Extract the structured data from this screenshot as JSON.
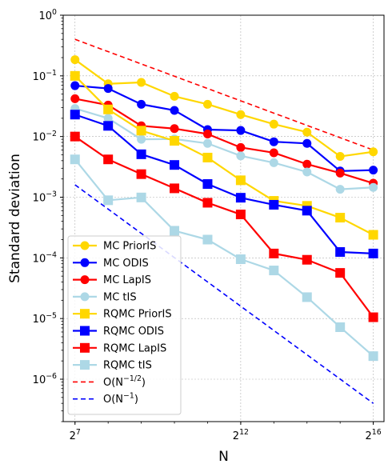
{
  "chart_data": {
    "type": "line",
    "xlabel": "N",
    "ylabel": "Standard deviation",
    "x_scale": "log2",
    "y_scale": "log10",
    "xlim": [
      100,
      82000
    ],
    "ylim": [
      2e-07,
      1
    ],
    "grid": true,
    "legend_position": "lower-left",
    "x_ticks": [
      {
        "value": 128,
        "base": "2",
        "exp": "7"
      },
      {
        "value": 4096,
        "base": "2",
        "exp": "12"
      },
      {
        "value": 65536,
        "base": "2",
        "exp": "16"
      }
    ],
    "y_ticks": [
      {
        "value": 1e-06,
        "base": "10",
        "exp": "−6"
      },
      {
        "value": 1e-05,
        "base": "10",
        "exp": "−5"
      },
      {
        "value": 0.0001,
        "base": "10",
        "exp": "−4"
      },
      {
        "value": 0.001,
        "base": "10",
        "exp": "−3"
      },
      {
        "value": 0.01,
        "base": "10",
        "exp": "−2"
      },
      {
        "value": 0.1,
        "base": "10",
        "exp": "−1"
      },
      {
        "value": 1,
        "base": "10",
        "exp": "0"
      }
    ],
    "x": [
      128,
      256,
      512,
      1024,
      2048,
      4096,
      8192,
      16384,
      32768,
      65536
    ],
    "series": [
      {
        "name": "MC PriorIS",
        "color": "#FFD700",
        "marker": "circle",
        "style": "solid",
        "values": [
          0.185,
          0.074,
          0.078,
          0.046,
          0.034,
          0.023,
          0.016,
          0.0118,
          0.0047,
          0.0056
        ]
      },
      {
        "name": "MC ODIS",
        "color": "#0000FF",
        "marker": "circle",
        "style": "solid",
        "values": [
          0.069,
          0.062,
          0.034,
          0.027,
          0.013,
          0.0126,
          0.0082,
          0.0077,
          0.0027,
          0.0028
        ]
      },
      {
        "name": "MC LapIS",
        "color": "#FF0000",
        "marker": "circle",
        "style": "solid",
        "values": [
          0.042,
          0.033,
          0.015,
          0.0135,
          0.011,
          0.0066,
          0.0054,
          0.0035,
          0.0025,
          0.0017
        ]
      },
      {
        "name": "MC tIS",
        "color": "#ADD8E6",
        "marker": "circle",
        "style": "solid",
        "values": [
          0.029,
          0.02,
          0.009,
          0.0091,
          0.0077,
          0.0048,
          0.0037,
          0.0026,
          0.00135,
          0.00145
        ]
      },
      {
        "name": "RQMC PriorIS",
        "color": "#FFD700",
        "marker": "square",
        "style": "solid",
        "values": [
          0.1,
          0.028,
          0.0125,
          0.0085,
          0.0045,
          0.0019,
          0.00087,
          0.00072,
          0.00046,
          0.00024
        ]
      },
      {
        "name": "RQMC ODIS",
        "color": "#0000FF",
        "marker": "square",
        "style": "solid",
        "values": [
          0.023,
          0.015,
          0.0051,
          0.0034,
          0.00165,
          0.00098,
          0.00075,
          0.0006,
          0.000125,
          0.000118
        ]
      },
      {
        "name": "RQMC LapIS",
        "color": "#FF0000",
        "marker": "square",
        "style": "solid",
        "values": [
          0.01,
          0.0042,
          0.0024,
          0.0014,
          0.00081,
          0.00052,
          0.000118,
          9.3e-05,
          5.65e-05,
          1.05e-05
        ]
      },
      {
        "name": "RQMC tIS",
        "color": "#ADD8E6",
        "marker": "square",
        "style": "solid",
        "values": [
          0.0042,
          0.00089,
          0.00099,
          0.00028,
          0.0002,
          9.5e-05,
          6.2e-05,
          2.25e-05,
          7.2e-06,
          2.4e-06
        ]
      }
    ],
    "reference_lines": [
      {
        "name": "O(N^{-1/2})",
        "label_main": "O(N",
        "label_exp": "−1/2",
        "label_end": ")",
        "color": "#FF0000",
        "style": "dashed",
        "x": [
          128,
          65536
        ],
        "values": [
          0.4,
          0.006
        ]
      },
      {
        "name": "O(N^{-1})",
        "label_main": "O(N",
        "label_exp": "−1",
        "label_end": ")",
        "color": "#0000FF",
        "style": "dashed",
        "x": [
          128,
          65536
        ],
        "values": [
          0.0016,
          4e-07
        ]
      }
    ]
  }
}
